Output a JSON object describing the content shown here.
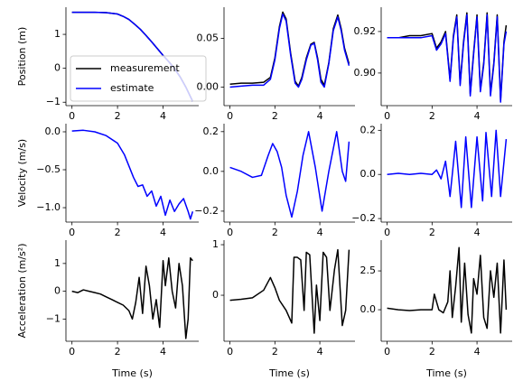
{
  "chart_data": [
    {
      "type": "line",
      "ylabel": "Position (m)",
      "legend": "lower left",
      "x": [
        0,
        0.5,
        1,
        1.5,
        2,
        2.25,
        2.5,
        2.75,
        3,
        3.25,
        3.5,
        3.75,
        4,
        4.25,
        4.5,
        4.75,
        5,
        5.3
      ],
      "series": [
        {
          "name": "measurement",
          "color": "#000000",
          "values": [
            1.65,
            1.65,
            1.65,
            1.64,
            1.6,
            1.53,
            1.44,
            1.3,
            1.15,
            0.97,
            0.78,
            0.58,
            0.38,
            0.2,
            0.0,
            -0.25,
            -0.55,
            -0.97
          ]
        },
        {
          "name": "estimate",
          "color": "#0000ff",
          "values": [
            1.65,
            1.65,
            1.65,
            1.64,
            1.6,
            1.53,
            1.44,
            1.3,
            1.15,
            0.97,
            0.78,
            0.58,
            0.38,
            0.19,
            -0.01,
            -0.26,
            -0.56,
            -0.98
          ]
        }
      ],
      "xlim": [
        -0.265,
        5.565
      ],
      "ylim": [
        -1.1,
        1.8
      ],
      "xticks": [
        0,
        2,
        4
      ],
      "yticks": [
        {
          "value": -1,
          "label": "−1"
        },
        0,
        1
      ]
    },
    {
      "type": "line",
      "x": [
        0,
        0.5,
        1,
        1.5,
        1.8,
        2.0,
        2.2,
        2.35,
        2.5,
        2.7,
        2.9,
        3.05,
        3.2,
        3.4,
        3.6,
        3.75,
        3.9,
        4.05,
        4.2,
        4.4,
        4.6,
        4.8,
        4.95,
        5.1,
        5.3
      ],
      "series": [
        {
          "color": "#000000",
          "values": [
            0.003,
            0.004,
            0.004,
            0.005,
            0.01,
            0.03,
            0.062,
            0.077,
            0.07,
            0.035,
            0.006,
            0.001,
            0.01,
            0.03,
            0.044,
            0.046,
            0.03,
            0.008,
            0.002,
            0.025,
            0.06,
            0.074,
            0.06,
            0.04,
            0.024
          ]
        },
        {
          "color": "#0000ff",
          "values": [
            0.0,
            0.001,
            0.002,
            0.002,
            0.008,
            0.028,
            0.06,
            0.075,
            0.068,
            0.033,
            0.004,
            0.0,
            0.008,
            0.028,
            0.043,
            0.045,
            0.028,
            0.005,
            0.0,
            0.024,
            0.058,
            0.072,
            0.058,
            0.038,
            0.022
          ]
        }
      ],
      "xlim": [
        -0.265,
        5.565
      ],
      "ylim": [
        -0.019,
        0.082
      ],
      "xticks": [
        0,
        2,
        4
      ],
      "yticks": [
        {
          "value": 0,
          "label": "0.00"
        },
        0.05
      ]
    },
    {
      "type": "line",
      "x": [
        0,
        0.5,
        1,
        1.5,
        2,
        2.2,
        2.4,
        2.6,
        2.8,
        2.95,
        3.1,
        3.25,
        3.4,
        3.55,
        3.7,
        3.85,
        4.0,
        4.15,
        4.3,
        4.45,
        4.6,
        4.75,
        4.9,
        5.05,
        5.2,
        5.3
      ],
      "series": [
        {
          "color": "#000000",
          "values": [
            0.917,
            0.917,
            0.918,
            0.918,
            0.919,
            0.912,
            0.915,
            0.92,
            0.897,
            0.918,
            0.928,
            0.895,
            0.915,
            0.929,
            0.89,
            0.91,
            0.928,
            0.892,
            0.905,
            0.929,
            0.89,
            0.905,
            0.928,
            0.887,
            0.915,
            0.923
          ]
        },
        {
          "color": "#0000ff",
          "values": [
            0.917,
            0.917,
            0.917,
            0.917,
            0.918,
            0.911,
            0.914,
            0.919,
            0.896,
            0.917,
            0.927,
            0.894,
            0.914,
            0.928,
            0.889,
            0.909,
            0.927,
            0.891,
            0.904,
            0.928,
            0.889,
            0.904,
            0.927,
            0.886,
            0.914,
            0.92
          ]
        }
      ],
      "xlim": [
        -0.265,
        5.565
      ],
      "ylim": [
        0.8843,
        0.9317
      ],
      "xticks": [
        0,
        2,
        4
      ],
      "yticks": [
        {
          "value": 0.9,
          "label": "0.90"
        },
        0.92
      ]
    },
    {
      "type": "line",
      "ylabel": "Velocity (m/s)",
      "x": [
        0,
        0.5,
        1,
        1.5,
        2,
        2.3,
        2.5,
        2.7,
        2.9,
        3.1,
        3.3,
        3.5,
        3.7,
        3.9,
        4.1,
        4.3,
        4.5,
        4.7,
        4.9,
        5.1,
        5.2,
        5.3
      ],
      "series": [
        {
          "color": "#0000ff",
          "values": [
            0.01,
            0.02,
            0.0,
            -0.05,
            -0.15,
            -0.3,
            -0.45,
            -0.6,
            -0.72,
            -0.7,
            -0.85,
            -0.78,
            -0.98,
            -0.85,
            -1.1,
            -0.9,
            -1.05,
            -0.95,
            -0.88,
            -1.05,
            -1.15,
            -1.05
          ]
        }
      ],
      "xlim": [
        -0.265,
        5.565
      ],
      "ylim": [
        -1.19,
        0.107
      ],
      "xticks": [
        0,
        2,
        4
      ],
      "yticks": [
        {
          "value": -1,
          "label": "−1.0"
        },
        {
          "value": -0.5,
          "label": "−0.5"
        },
        {
          "value": 0,
          "label": "0.0"
        }
      ]
    },
    {
      "type": "line",
      "x": [
        0,
        0.5,
        1,
        1.4,
        1.7,
        1.9,
        2.1,
        2.3,
        2.5,
        2.75,
        3.0,
        3.25,
        3.5,
        3.8,
        4.1,
        4.4,
        4.75,
        5.0,
        5.15,
        5.3
      ],
      "series": [
        {
          "color": "#0000ff",
          "values": [
            0.02,
            0.0,
            -0.03,
            -0.02,
            0.08,
            0.14,
            0.1,
            0.02,
            -0.12,
            -0.23,
            -0.1,
            0.08,
            0.2,
            0.02,
            -0.2,
            0.0,
            0.2,
            0.0,
            -0.05,
            0.15
          ]
        }
      ],
      "xlim": [
        -0.265,
        5.565
      ],
      "ylim": [
        -0.255,
        0.24
      ],
      "xticks": [
        0,
        2,
        4
      ],
      "yticks": [
        {
          "value": -0.2,
          "label": "−0.2"
        },
        {
          "value": 0,
          "label": "0.0"
        },
        0.2
      ]
    },
    {
      "type": "line",
      "x": [
        0,
        0.5,
        1,
        1.5,
        2,
        2.2,
        2.4,
        2.6,
        2.8,
        3.05,
        3.3,
        3.5,
        3.75,
        4.0,
        4.25,
        4.4,
        4.65,
        4.85,
        5.05,
        5.3
      ],
      "series": [
        {
          "color": "#0000ff",
          "values": [
            0,
            0.005,
            0.0,
            0.005,
            0.0,
            0.02,
            -0.02,
            0.06,
            -0.1,
            0.15,
            -0.15,
            0.17,
            -0.15,
            0.17,
            -0.12,
            0.19,
            -0.1,
            0.2,
            -0.1,
            0.16
          ]
        }
      ],
      "xlim": [
        -0.265,
        5.565
      ],
      "ylim": [
        -0.216,
        0.23
      ],
      "xticks": [
        0,
        2,
        4
      ],
      "yticks": [
        {
          "value": -0.2,
          "label": "−0.2"
        },
        {
          "value": 0,
          "label": "0.0"
        },
        0.2
      ]
    },
    {
      "type": "line",
      "ylabel": "Acceleration (m/s²)",
      "xlabel": "Time (s)",
      "x": [
        0,
        0.25,
        0.5,
        0.75,
        1,
        1.25,
        1.5,
        1.75,
        2,
        2.25,
        2.5,
        2.65,
        2.8,
        2.95,
        3.1,
        3.25,
        3.4,
        3.55,
        3.7,
        3.85,
        4.0,
        4.1,
        4.25,
        4.4,
        4.55,
        4.7,
        4.85,
        5.0,
        5.1,
        5.2,
        5.3
      ],
      "series": [
        {
          "color": "#000000",
          "values": [
            0,
            -0.05,
            0.05,
            0,
            -0.05,
            -0.1,
            -0.2,
            -0.3,
            -0.4,
            -0.5,
            -0.7,
            -1.0,
            -0.4,
            0.5,
            -0.8,
            0.9,
            0.2,
            -1.0,
            -0.3,
            -1.3,
            1.1,
            0.2,
            1.2,
            0.0,
            -0.6,
            1.0,
            0.2,
            -1.7,
            -1.0,
            1.2,
            1.1
          ]
        }
      ],
      "xlim": [
        -0.265,
        5.565
      ],
      "ylim": [
        -1.8,
        1.84
      ],
      "xticks": [
        0,
        2,
        4
      ],
      "yticks": [
        {
          "value": -1,
          "label": "−1"
        },
        0,
        1
      ]
    },
    {
      "type": "line",
      "xlabel": "Time (s)",
      "x": [
        0,
        0.5,
        1,
        1.5,
        1.8,
        2.0,
        2.2,
        2.5,
        2.75,
        2.85,
        3.0,
        3.15,
        3.3,
        3.4,
        3.55,
        3.75,
        3.85,
        4.0,
        4.15,
        4.3,
        4.45,
        4.65,
        4.8,
        5.0,
        5.15,
        5.3
      ],
      "series": [
        {
          "color": "#000000",
          "values": [
            -0.1,
            -0.08,
            -0.05,
            0.1,
            0.35,
            0.15,
            -0.1,
            -0.3,
            -0.55,
            0.75,
            0.75,
            0.7,
            -0.3,
            0.85,
            0.8,
            -0.75,
            0.2,
            -0.5,
            0.85,
            0.75,
            -0.3,
            0.5,
            0.9,
            -0.6,
            -0.3,
            0.9
          ]
        }
      ],
      "xlim": [
        -0.265,
        5.565
      ],
      "ylim": [
        -0.91,
        1.09
      ],
      "xticks": [
        0,
        2,
        4
      ],
      "yticks": [
        0,
        1
      ]
    },
    {
      "type": "line",
      "xlabel": "Time (s)",
      "x": [
        0,
        0.5,
        1,
        1.5,
        2,
        2.1,
        2.3,
        2.5,
        2.7,
        2.8,
        2.9,
        3.05,
        3.2,
        3.3,
        3.45,
        3.6,
        3.75,
        3.85,
        4.0,
        4.15,
        4.3,
        4.45,
        4.6,
        4.75,
        4.9,
        5.05,
        5.2,
        5.3
      ],
      "series": [
        {
          "color": "#000000",
          "values": [
            0.1,
            0,
            -0.05,
            0,
            0,
            1.0,
            0,
            -0.2,
            0.5,
            2.5,
            -0.5,
            1.5,
            4.0,
            -0.8,
            3.0,
            -0.3,
            -1.5,
            2.0,
            1.0,
            3.5,
            -0.5,
            -1.2,
            2.5,
            0.8,
            3.0,
            -1.5,
            3.2,
            0.0
          ]
        }
      ],
      "xlim": [
        -0.265,
        5.565
      ],
      "ylim": [
        -2.03,
        4.48
      ],
      "xticks": [
        0,
        2,
        4
      ],
      "yticks": [
        {
          "value": 0,
          "label": "0.0"
        },
        2.5
      ]
    }
  ]
}
